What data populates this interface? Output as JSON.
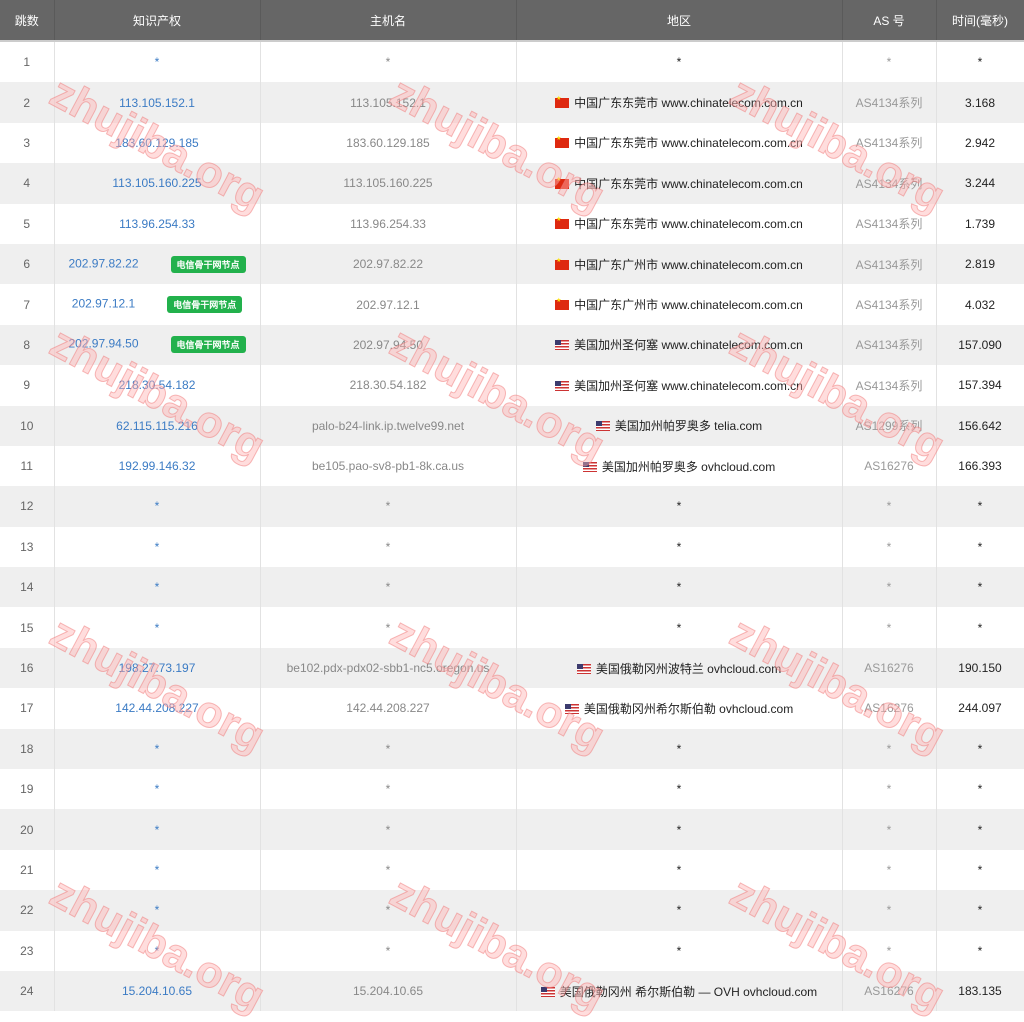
{
  "headers": [
    "跳数",
    "知识产权",
    "主机名",
    "地区",
    "AS 号",
    "时间(毫秒)"
  ],
  "badge_label": "电信骨干网节点",
  "watermark": "zhujiba.org",
  "colors": {
    "header_bg": "#666666",
    "ip_link": "#3b7bc4",
    "badge": "#22b14c",
    "stripe": "#efefef",
    "watermark": "#f08080"
  },
  "rows": [
    {
      "hop": "1",
      "ip": "*",
      "host": "*",
      "flag": "",
      "region": "*",
      "as": "*",
      "time": "*"
    },
    {
      "hop": "2",
      "ip": "113.105.152.1",
      "host": "113.105.152.1",
      "flag": "cn",
      "region": "中国广东东莞市 www.chinatelecom.com.cn",
      "as": "AS4134系列",
      "time": "3.168"
    },
    {
      "hop": "3",
      "ip": "183.60.129.185",
      "host": "183.60.129.185",
      "flag": "cn",
      "region": "中国广东东莞市 www.chinatelecom.com.cn",
      "as": "AS4134系列",
      "time": "2.942"
    },
    {
      "hop": "4",
      "ip": "113.105.160.225",
      "host": "113.105.160.225",
      "flag": "cn",
      "region": "中国广东东莞市 www.chinatelecom.com.cn",
      "as": "AS4134系列",
      "time": "3.244"
    },
    {
      "hop": "5",
      "ip": "113.96.254.33",
      "host": "113.96.254.33",
      "flag": "cn",
      "region": "中国广东东莞市 www.chinatelecom.com.cn",
      "as": "AS4134系列",
      "time": "1.739"
    },
    {
      "hop": "6",
      "ip": "202.97.82.22",
      "badge": true,
      "host": "202.97.82.22",
      "flag": "cn",
      "region": "中国广东广州市 www.chinatelecom.com.cn",
      "as": "AS4134系列",
      "time": "2.819"
    },
    {
      "hop": "7",
      "ip": "202.97.12.1",
      "badge": true,
      "host": "202.97.12.1",
      "flag": "cn",
      "region": "中国广东广州市 www.chinatelecom.com.cn",
      "as": "AS4134系列",
      "time": "4.032"
    },
    {
      "hop": "8",
      "ip": "202.97.94.50",
      "badge": true,
      "host": "202.97.94.50",
      "flag": "us",
      "region": "美国加州圣何塞 www.chinatelecom.com.cn",
      "as": "AS4134系列",
      "time": "157.090"
    },
    {
      "hop": "9",
      "ip": "218.30.54.182",
      "host": "218.30.54.182",
      "flag": "us",
      "region": "美国加州圣何塞 www.chinatelecom.com.cn",
      "as": "AS4134系列",
      "time": "157.394"
    },
    {
      "hop": "10",
      "ip": "62.115.115.216",
      "host": "palo-b24-link.ip.twelve99.net",
      "flag": "us",
      "region": "美国加州帕罗奥多 telia.com",
      "as": "AS1299系列",
      "time": "156.642"
    },
    {
      "hop": "11",
      "ip": "192.99.146.32",
      "host": "be105.pao-sv8-pb1-8k.ca.us",
      "flag": "us",
      "region": "美国加州帕罗奥多 ovhcloud.com",
      "as": "AS16276",
      "time": "166.393"
    },
    {
      "hop": "12",
      "ip": "*",
      "host": "*",
      "flag": "",
      "region": "*",
      "as": "*",
      "time": "*"
    },
    {
      "hop": "13",
      "ip": "*",
      "host": "*",
      "flag": "",
      "region": "*",
      "as": "*",
      "time": "*"
    },
    {
      "hop": "14",
      "ip": "*",
      "host": "*",
      "flag": "",
      "region": "*",
      "as": "*",
      "time": "*"
    },
    {
      "hop": "15",
      "ip": "*",
      "host": "*",
      "flag": "",
      "region": "*",
      "as": "*",
      "time": "*"
    },
    {
      "hop": "16",
      "ip": "198.27.73.197",
      "host": "be102.pdx-pdx02-sbb1-nc5.oregon.us",
      "flag": "us",
      "region": "美国俄勒冈州波特兰 ovhcloud.com",
      "as": "AS16276",
      "time": "190.150"
    },
    {
      "hop": "17",
      "ip": "142.44.208.227",
      "host": "142.44.208.227",
      "flag": "us",
      "region": "美国俄勒冈州希尔斯伯勒 ovhcloud.com",
      "as": "AS16276",
      "time": "244.097"
    },
    {
      "hop": "18",
      "ip": "*",
      "host": "*",
      "flag": "",
      "region": "*",
      "as": "*",
      "time": "*"
    },
    {
      "hop": "19",
      "ip": "*",
      "host": "*",
      "flag": "",
      "region": "*",
      "as": "*",
      "time": "*"
    },
    {
      "hop": "20",
      "ip": "*",
      "host": "*",
      "flag": "",
      "region": "*",
      "as": "*",
      "time": "*"
    },
    {
      "hop": "21",
      "ip": "*",
      "host": "*",
      "flag": "",
      "region": "*",
      "as": "*",
      "time": "*"
    },
    {
      "hop": "22",
      "ip": "*",
      "host": "*",
      "flag": "",
      "region": "*",
      "as": "*",
      "time": "*"
    },
    {
      "hop": "23",
      "ip": "*",
      "host": "*",
      "flag": "",
      "region": "*",
      "as": "*",
      "time": "*"
    },
    {
      "hop": "24",
      "ip": "15.204.10.65",
      "host": "15.204.10.65",
      "flag": "us",
      "region": "美国俄勒冈州 希尔斯伯勒 — OVH ovhcloud.com",
      "as": "AS16276",
      "time": "183.135"
    }
  ]
}
